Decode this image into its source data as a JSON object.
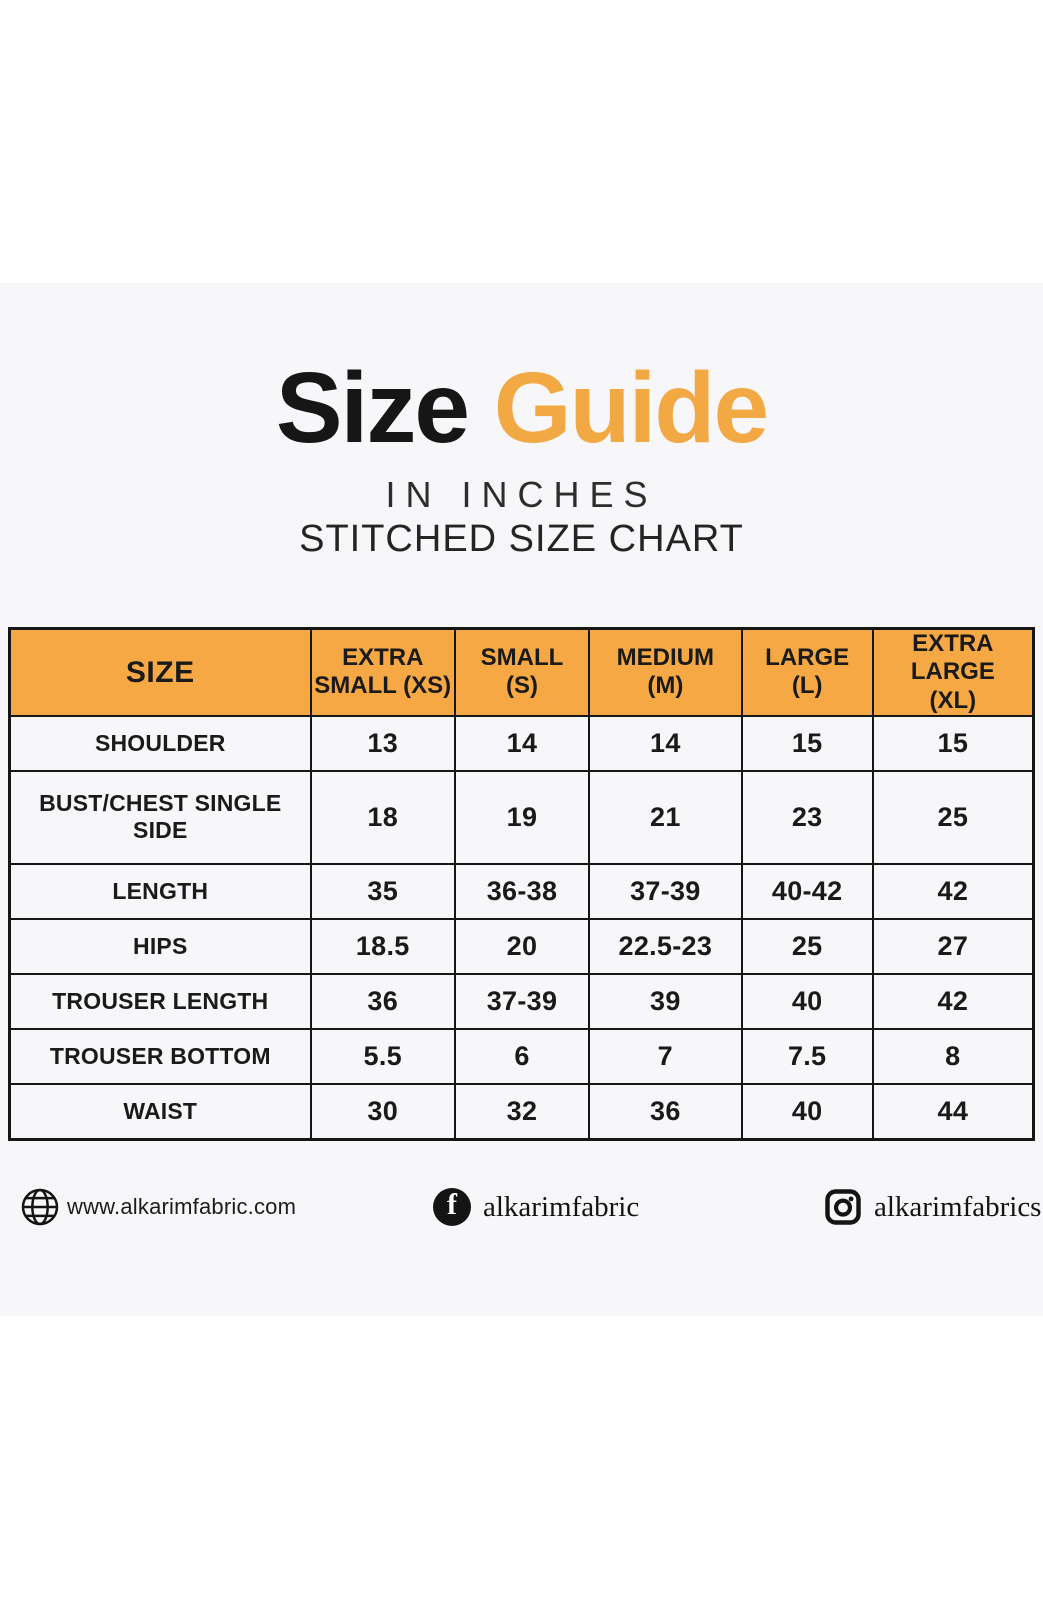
{
  "colors": {
    "accent_orange": "#f2a843",
    "header_orange": "#f5a843",
    "band_gray": "#f7f7f9",
    "text_black": "#161616"
  },
  "title": {
    "word_black": "Size",
    "word_orange": "Guide",
    "subtitle_units": "IN INCHES",
    "subtitle_chart": "STITCHED SIZE CHART"
  },
  "chart_data": {
    "type": "table",
    "title": "Size Guide — Stitched Size Chart (in inches)",
    "columns": [
      "SIZE",
      "EXTRA\nSMALL (XS)",
      "SMALL\n(S)",
      "MEDIUM\n(M)",
      "LARGE\n(L)",
      "EXTRA LARGE\n(XL)"
    ],
    "column_widths_pct": [
      29.4,
      14.1,
      13.1,
      14.9,
      12.8,
      15.7
    ],
    "rows": [
      {
        "label": "SHOULDER",
        "values": [
          "13",
          "14",
          "14",
          "15",
          "15"
        ]
      },
      {
        "label": "BUST/CHEST SINGLE SIDE",
        "values": [
          "18",
          "19",
          "21",
          "23",
          "25"
        ]
      },
      {
        "label": "LENGTH",
        "values": [
          "35",
          "36-38",
          "37-39",
          "40-42",
          "42"
        ]
      },
      {
        "label": "HIPS",
        "values": [
          "18.5",
          "20",
          "22.5-23",
          "25",
          "27"
        ]
      },
      {
        "label": "TROUSER LENGTH",
        "values": [
          "36",
          "37-39",
          "39",
          "40",
          "42"
        ]
      },
      {
        "label": "TROUSER BOTTOM",
        "values": [
          "5.5",
          "6",
          "7",
          "7.5",
          "8"
        ]
      },
      {
        "label": "WAIST",
        "values": [
          "30",
          "32",
          "36",
          "40",
          "44"
        ]
      }
    ]
  },
  "footer": {
    "website": "www.alkarimfabric.com",
    "facebook_handle": "alkarimfabric",
    "facebook_icon_glyph": "f",
    "instagram_handle": "alkarimfabrics"
  }
}
